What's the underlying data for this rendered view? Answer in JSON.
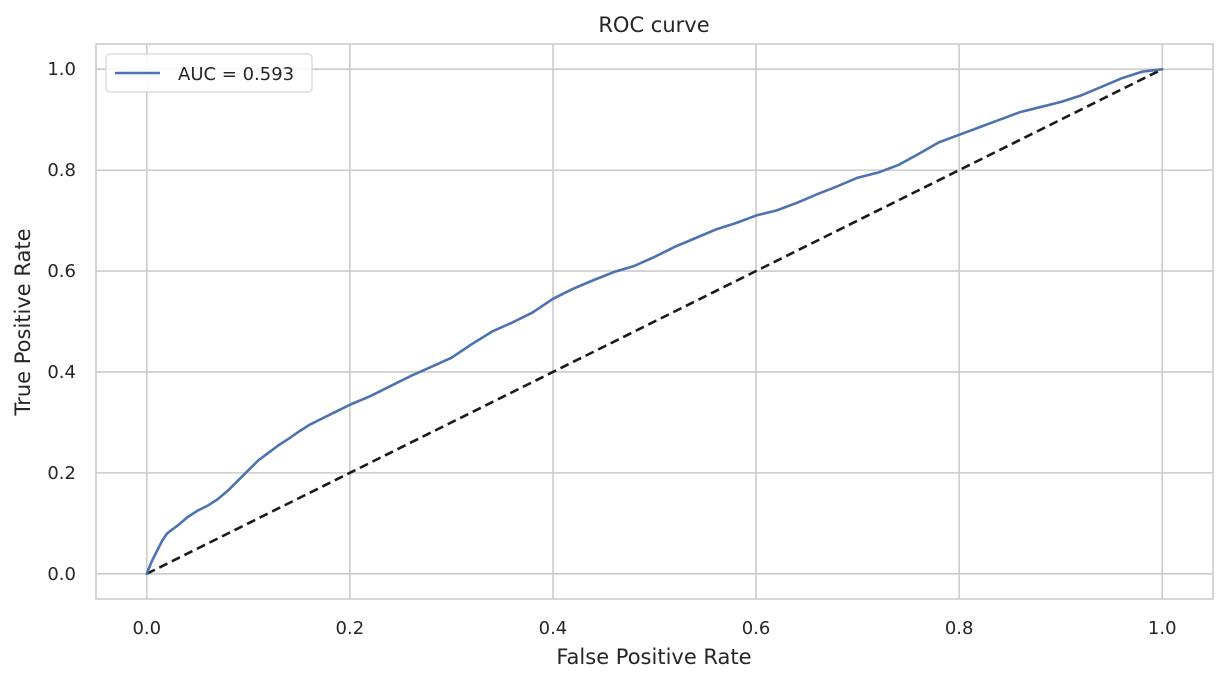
{
  "chart_data": {
    "type": "line",
    "title": "ROC curve",
    "xlabel": "False Positive Rate",
    "ylabel": "True Positive Rate",
    "xlim": [
      -0.05,
      1.05
    ],
    "ylim": [
      -0.05,
      1.05
    ],
    "xticks": [
      0.0,
      0.2,
      0.4,
      0.6,
      0.8,
      1.0
    ],
    "xtick_labels": [
      "0.0",
      "0.2",
      "0.4",
      "0.6",
      "0.8",
      "1.0"
    ],
    "yticks": [
      0.0,
      0.2,
      0.4,
      0.6,
      0.8,
      1.0
    ],
    "ytick_labels": [
      "0.0",
      "0.2",
      "0.4",
      "0.6",
      "0.8",
      "1.0"
    ],
    "grid": true,
    "legend_position": "top-left",
    "series": [
      {
        "name": "AUC = 0.593",
        "color": "#4c72b0",
        "style": "solid",
        "x": [
          0.0,
          0.005,
          0.01,
          0.015,
          0.02,
          0.03,
          0.04,
          0.05,
          0.06,
          0.07,
          0.08,
          0.09,
          0.1,
          0.11,
          0.12,
          0.13,
          0.14,
          0.15,
          0.16,
          0.17,
          0.18,
          0.19,
          0.2,
          0.22,
          0.24,
          0.26,
          0.28,
          0.3,
          0.32,
          0.34,
          0.36,
          0.38,
          0.4,
          0.42,
          0.44,
          0.46,
          0.48,
          0.5,
          0.52,
          0.54,
          0.56,
          0.58,
          0.6,
          0.62,
          0.64,
          0.66,
          0.68,
          0.7,
          0.72,
          0.74,
          0.76,
          0.78,
          0.8,
          0.82,
          0.84,
          0.86,
          0.88,
          0.9,
          0.92,
          0.94,
          0.96,
          0.98,
          1.0
        ],
        "y": [
          0.0,
          0.025,
          0.045,
          0.065,
          0.08,
          0.095,
          0.112,
          0.125,
          0.135,
          0.148,
          0.165,
          0.185,
          0.205,
          0.225,
          0.24,
          0.255,
          0.268,
          0.282,
          0.295,
          0.305,
          0.315,
          0.325,
          0.335,
          0.352,
          0.372,
          0.392,
          0.41,
          0.428,
          0.455,
          0.48,
          0.498,
          0.518,
          0.545,
          0.565,
          0.582,
          0.598,
          0.61,
          0.628,
          0.648,
          0.665,
          0.682,
          0.695,
          0.71,
          0.72,
          0.735,
          0.752,
          0.768,
          0.785,
          0.795,
          0.81,
          0.832,
          0.855,
          0.87,
          0.885,
          0.9,
          0.915,
          0.925,
          0.935,
          0.948,
          0.965,
          0.982,
          0.995,
          1.0
        ]
      },
      {
        "color": "#1a1a1a",
        "style": "dashed",
        "x": [
          0.0,
          1.0
        ],
        "y": [
          0.0,
          1.0
        ]
      }
    ]
  }
}
